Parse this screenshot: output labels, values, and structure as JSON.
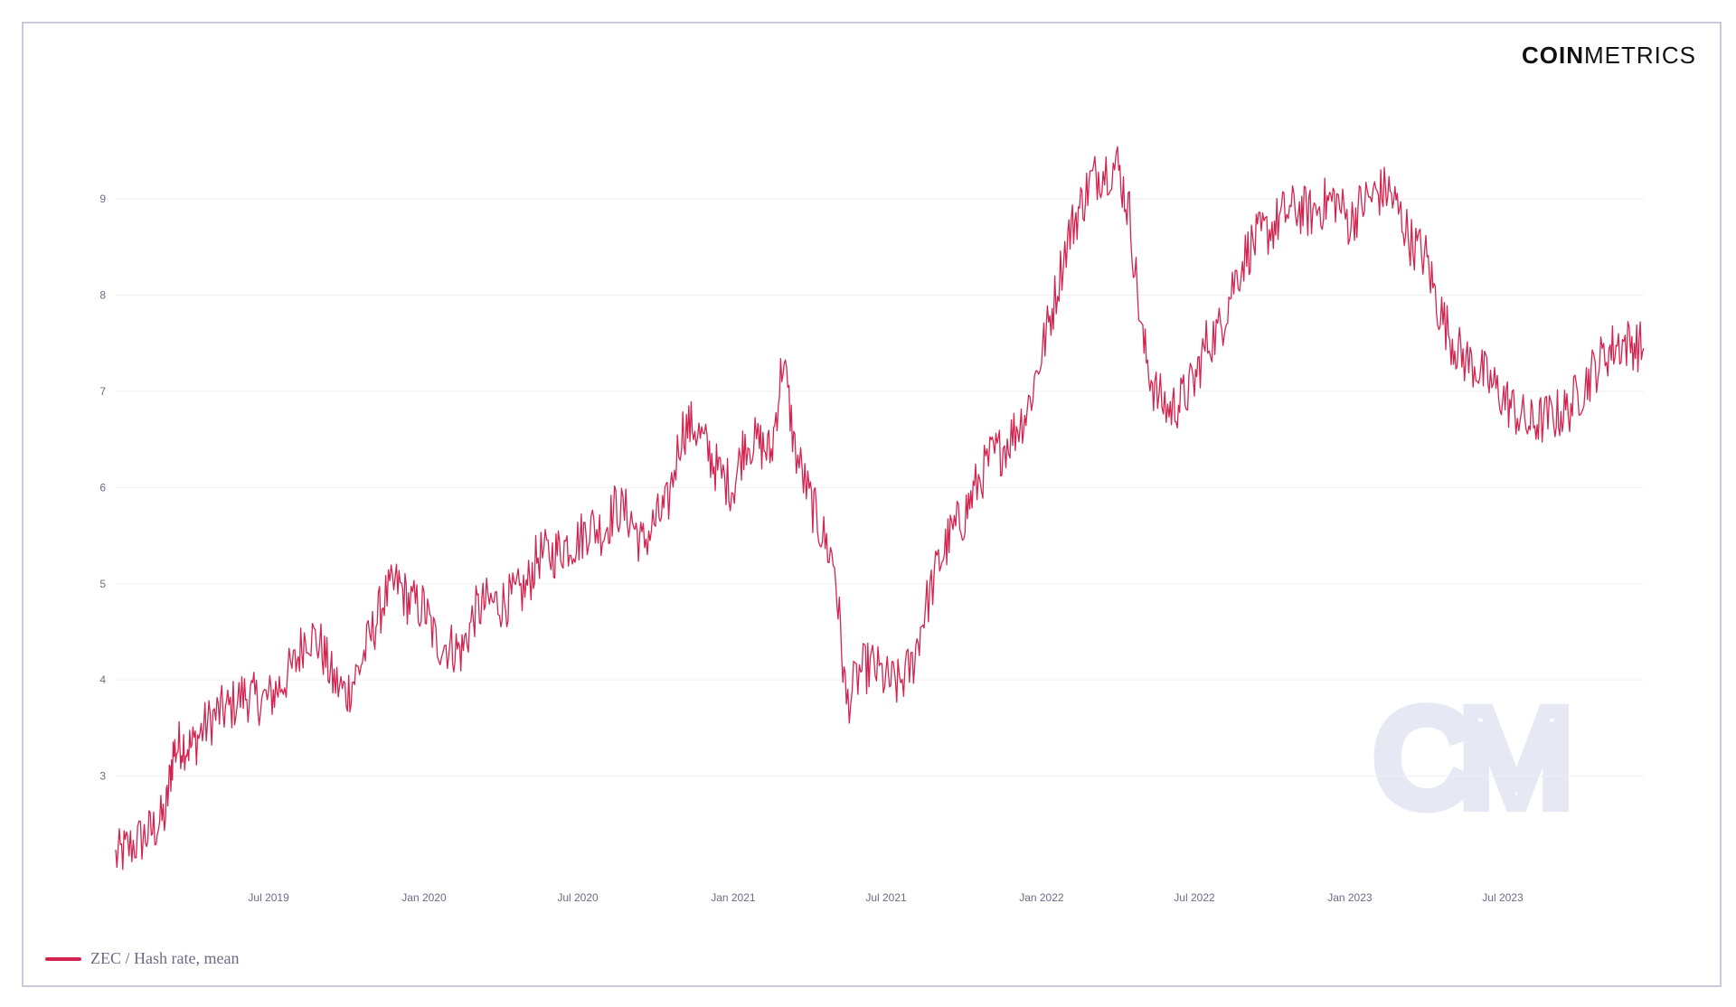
{
  "logo": {
    "bold_part": "COIN",
    "light_part": "METRICS"
  },
  "watermark": "CM",
  "colors": {
    "series": "#d3244f",
    "grid": "#efeff5",
    "axis_text": "#6b6b86",
    "frame": "#c9c9dc",
    "watermark": "#e6e8f4"
  },
  "chart_data": {
    "type": "line",
    "title": "",
    "xlabel": "",
    "ylabel": "",
    "grid": true,
    "legend_placement": "bottom-left",
    "ylim": [
      2.0,
      9.8
    ],
    "xlim": [
      "2019-01-01",
      "2023-12-15"
    ],
    "y_ticks": [
      3,
      4,
      5,
      6,
      7,
      8,
      9
    ],
    "x_ticks": [
      {
        "label": "Jul 2019",
        "date": "2019-07-01"
      },
      {
        "label": "Jan 2020",
        "date": "2020-01-01"
      },
      {
        "label": "Jul 2020",
        "date": "2020-07-01"
      },
      {
        "label": "Jan 2021",
        "date": "2021-01-01"
      },
      {
        "label": "Jul 2021",
        "date": "2021-07-01"
      },
      {
        "label": "Jan 2022",
        "date": "2022-01-01"
      },
      {
        "label": "Jul 2022",
        "date": "2022-07-01"
      },
      {
        "label": "Jan 2023",
        "date": "2023-01-01"
      },
      {
        "label": "Jul 2023",
        "date": "2023-07-01"
      }
    ],
    "series": [
      {
        "name": "ZEC / Hash rate, mean",
        "color": "#d3244f",
        "x": [
          "2019-01-01",
          "2019-01-15",
          "2019-02-01",
          "2019-02-15",
          "2019-03-01",
          "2019-03-10",
          "2019-03-20",
          "2019-04-01",
          "2019-04-15",
          "2019-05-01",
          "2019-05-15",
          "2019-06-01",
          "2019-06-15",
          "2019-07-01",
          "2019-07-15",
          "2019-08-01",
          "2019-08-15",
          "2019-09-01",
          "2019-09-15",
          "2019-10-01",
          "2019-10-15",
          "2019-11-01",
          "2019-11-15",
          "2019-12-01",
          "2019-12-15",
          "2020-01-01",
          "2020-01-15",
          "2020-02-01",
          "2020-02-15",
          "2020-03-01",
          "2020-03-15",
          "2020-04-01",
          "2020-04-15",
          "2020-05-01",
          "2020-05-15",
          "2020-06-01",
          "2020-06-15",
          "2020-07-01",
          "2020-07-15",
          "2020-08-01",
          "2020-08-15",
          "2020-09-01",
          "2020-09-15",
          "2020-10-01",
          "2020-10-15",
          "2020-11-01",
          "2020-11-15",
          "2020-12-01",
          "2020-12-15",
          "2021-01-01",
          "2021-01-15",
          "2021-02-01",
          "2021-02-15",
          "2021-03-01",
          "2021-03-15",
          "2021-04-01",
          "2021-04-15",
          "2021-05-01",
          "2021-05-15",
          "2021-06-01",
          "2021-06-15",
          "2021-07-01",
          "2021-07-15",
          "2021-08-01",
          "2021-08-15",
          "2021-09-01",
          "2021-09-15",
          "2021-10-01",
          "2021-10-15",
          "2021-11-01",
          "2021-11-15",
          "2021-12-01",
          "2021-12-15",
          "2022-01-01",
          "2022-01-15",
          "2022-02-01",
          "2022-02-15",
          "2022-03-01",
          "2022-03-15",
          "2022-04-01",
          "2022-04-15",
          "2022-05-01",
          "2022-05-15",
          "2022-06-01",
          "2022-06-15",
          "2022-07-01",
          "2022-07-15",
          "2022-08-01",
          "2022-08-15",
          "2022-09-01",
          "2022-09-15",
          "2022-10-01",
          "2022-10-15",
          "2022-11-01",
          "2022-11-15",
          "2022-12-01",
          "2022-12-15",
          "2023-01-01",
          "2023-01-15",
          "2023-02-01",
          "2023-02-15",
          "2023-03-01",
          "2023-03-15",
          "2023-04-01",
          "2023-04-15",
          "2023-05-01",
          "2023-05-15",
          "2023-06-01",
          "2023-06-15",
          "2023-07-01",
          "2023-07-15",
          "2023-08-01",
          "2023-08-15",
          "2023-09-01",
          "2023-09-15",
          "2023-10-01",
          "2023-10-15",
          "2023-11-01",
          "2023-11-15",
          "2023-12-01",
          "2023-12-15"
        ],
        "values": [
          2.15,
          2.25,
          2.35,
          2.45,
          2.6,
          3.25,
          3.35,
          3.3,
          3.5,
          3.65,
          3.7,
          3.85,
          3.8,
          3.8,
          3.95,
          4.15,
          4.5,
          4.35,
          4.0,
          3.85,
          4.1,
          4.5,
          4.85,
          5.0,
          4.8,
          4.75,
          4.4,
          4.35,
          4.3,
          4.7,
          4.8,
          4.8,
          4.85,
          4.95,
          5.3,
          5.3,
          5.4,
          5.45,
          5.6,
          5.55,
          5.8,
          5.7,
          5.4,
          5.65,
          5.8,
          6.6,
          6.65,
          6.4,
          6.15,
          6.0,
          6.5,
          6.45,
          6.35,
          7.35,
          6.4,
          5.9,
          5.55,
          5.2,
          3.75,
          4.1,
          4.15,
          4.0,
          3.95,
          4.15,
          4.7,
          5.2,
          5.5,
          5.7,
          6.0,
          6.3,
          6.4,
          6.6,
          6.8,
          7.4,
          7.9,
          8.6,
          8.9,
          9.2,
          9.3,
          9.35,
          8.85,
          7.5,
          7.0,
          6.8,
          6.9,
          7.1,
          7.5,
          7.65,
          8.1,
          8.45,
          8.6,
          8.7,
          8.85,
          8.9,
          8.85,
          8.95,
          9.0,
          8.75,
          8.95,
          9.05,
          9.1,
          8.85,
          8.55,
          8.4,
          7.9,
          7.55,
          7.35,
          7.25,
          7.1,
          6.95,
          6.8,
          6.65,
          6.7,
          6.75,
          6.8,
          7.0,
          7.2,
          7.4,
          7.5,
          7.5,
          7.45
        ]
      }
    ]
  }
}
